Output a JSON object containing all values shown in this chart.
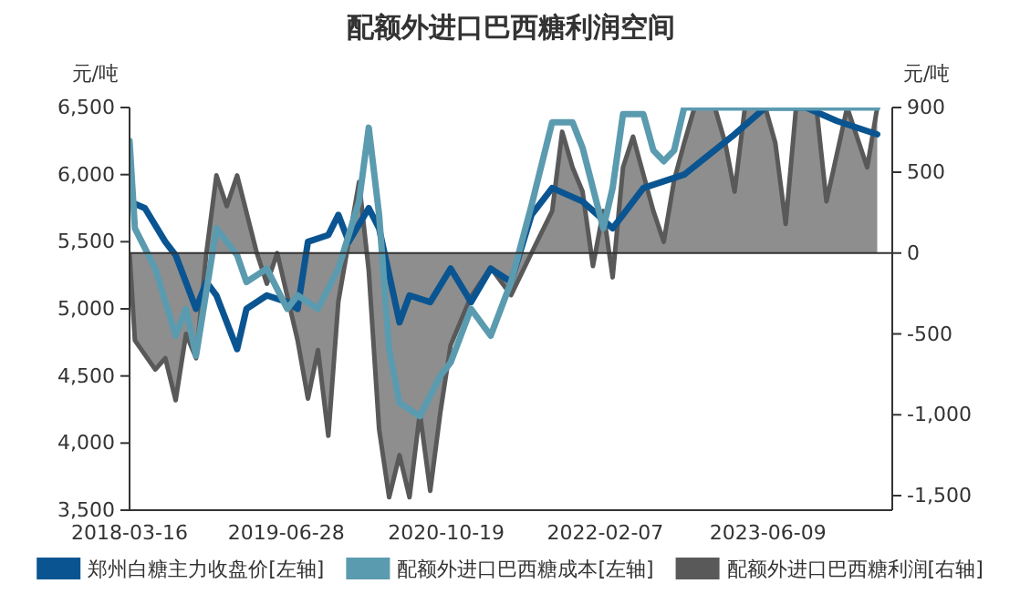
{
  "chart_data": {
    "type": "line",
    "title": "配额外进口巴西糖利润空间",
    "ylabel": "元/吨",
    "y2label": "元/吨",
    "xlim": [
      "2018-03-16",
      "2024-06-15"
    ],
    "xticks": [
      {
        "value": "2018-03-16",
        "label": "2018-03-16"
      },
      {
        "value": "2019-06-28",
        "label": "2019-06-28"
      },
      {
        "value": "2020-10-19",
        "label": "2020-10-19"
      },
      {
        "value": "2022-02-07",
        "label": "2022-02-07"
      },
      {
        "value": "2023-06-09",
        "label": "2023-06-09"
      }
    ],
    "ylim": [
      3500,
      6500
    ],
    "yticks": [
      {
        "value": 3500,
        "label": "3,500"
      },
      {
        "value": 4000,
        "label": "4,000"
      },
      {
        "value": 4500,
        "label": "4,500"
      },
      {
        "value": 5000,
        "label": "5,000"
      },
      {
        "value": 5500,
        "label": "5,500"
      },
      {
        "value": 6000,
        "label": "6,000"
      },
      {
        "value": 6500,
        "label": "6,500"
      }
    ],
    "y2lim": [
      -1590,
      900
    ],
    "y2ticks": [
      {
        "value": -1500,
        "label": "-1,500"
      },
      {
        "value": -1000,
        "label": "-1,000"
      },
      -500,
      0,
      500,
      900
    ],
    "legend": "bottom",
    "series": [
      {
        "name": "配额外进口巴西糖利润[右轴]",
        "type": "area",
        "axis": "y2",
        "color": "#595959",
        "x": [
          "2018-03-16",
          "2018-04",
          "2018-06",
          "2018-07",
          "2018-08",
          "2018-09",
          "2018-10",
          "2018-11",
          "2018-12",
          "2019-01",
          "2019-02",
          "2019-04",
          "2019-05",
          "2019-06",
          "2019-08",
          "2019-09",
          "2019-10",
          "2019-11",
          "2019-12",
          "2020-02",
          "2020-03",
          "2020-04",
          "2020-05",
          "2020-06",
          "2020-07",
          "2020-08",
          "2020-09",
          "2020-10",
          "2020-11",
          "2021-01",
          "2021-03",
          "2021-05",
          "2021-07",
          "2021-09",
          "2021-10",
          "2021-11",
          "2021-12",
          "2022-01",
          "2022-02",
          "2022-03",
          "2022-04",
          "2022-05",
          "2022-07",
          "2022-08",
          "2022-09",
          "2022-10",
          "2022-11",
          "2023-01",
          "2023-02",
          "2023-03",
          "2023-04",
          "2023-06",
          "2023-07",
          "2023-08",
          "2023-09",
          "2023-11",
          "2023-12",
          "2024-02",
          "2024-04",
          "2024-05"
        ],
        "values": [
          0,
          -540,
          -720,
          -650,
          -910,
          -500,
          -650,
          0,
          480,
          290,
          480,
          0,
          -190,
          0,
          -540,
          -900,
          -600,
          -1130,
          -300,
          440,
          -110,
          -1090,
          -1510,
          -1250,
          -1510,
          -990,
          -1470,
          -990,
          -570,
          -270,
          -90,
          -260,
          0,
          260,
          750,
          530,
          380,
          -80,
          260,
          -150,
          530,
          720,
          260,
          70,
          450,
          680,
          900,
          900,
          680,
          380,
          900,
          900,
          680,
          180,
          900,
          900,
          320,
          900,
          530,
          900
        ]
      },
      {
        "name": "郑州白糖主力收盘价[左轴]",
        "axis": "y",
        "color": "#0a5591",
        "x": [
          "2018-03-16",
          "2018-05",
          "2018-07",
          "2018-08",
          "2018-10",
          "2018-11",
          "2018-12",
          "2019-02",
          "2019-03",
          "2019-05",
          "2019-07",
          "2019-08",
          "2019-09",
          "2019-11",
          "2019-12",
          "2020-01",
          "2020-03",
          "2020-04",
          "2020-06",
          "2020-07",
          "2020-09",
          "2020-11",
          "2021-01",
          "2021-03",
          "2021-05",
          "2021-07",
          "2021-09",
          "2021-12",
          "2022-03",
          "2022-06",
          "2022-10",
          "2023-03",
          "2023-06",
          "2023-10",
          "2024-01",
          "2024-05"
        ],
        "values": [
          5800,
          5750,
          5500,
          5400,
          5000,
          5200,
          5100,
          4700,
          5000,
          5100,
          5050,
          5000,
          5500,
          5550,
          5700,
          5500,
          5750,
          5600,
          4900,
          5100,
          5050,
          5300,
          5050,
          5300,
          5200,
          5700,
          5900,
          5800,
          5600,
          5900,
          6000,
          6300,
          6500,
          6500,
          6400,
          6300
        ]
      },
      {
        "name": "配额外进口巴西糖成本[左轴]",
        "axis": "y",
        "color": "#5b9bb0",
        "x": [
          "2018-03-16",
          "2018-04",
          "2018-06",
          "2018-08",
          "2018-09",
          "2018-10",
          "2018-12",
          "2019-02",
          "2019-03",
          "2019-05",
          "2019-07",
          "2019-08",
          "2019-10",
          "2019-12",
          "2020-02",
          "2020-03",
          "2020-04",
          "2020-05",
          "2020-06",
          "2020-08",
          "2020-10",
          "2020-11",
          "2021-01",
          "2021-03",
          "2021-05",
          "2021-07",
          "2021-09",
          "2021-11",
          "2021-12",
          "2022-02",
          "2022-03",
          "2022-04",
          "2022-06",
          "2022-07",
          "2022-08",
          "2022-09",
          "2022-10",
          "2024-05"
        ],
        "values": [
          6250,
          5600,
          5300,
          4800,
          5000,
          4650,
          5600,
          5400,
          5200,
          5300,
          5000,
          5100,
          5000,
          5300,
          5800,
          6350,
          5700,
          4700,
          4300,
          4200,
          4500,
          4600,
          5000,
          4800,
          5200,
          5770,
          6390,
          6390,
          6200,
          5600,
          5900,
          6450,
          6450,
          6180,
          6100,
          6180,
          6500,
          6500
        ]
      }
    ]
  }
}
